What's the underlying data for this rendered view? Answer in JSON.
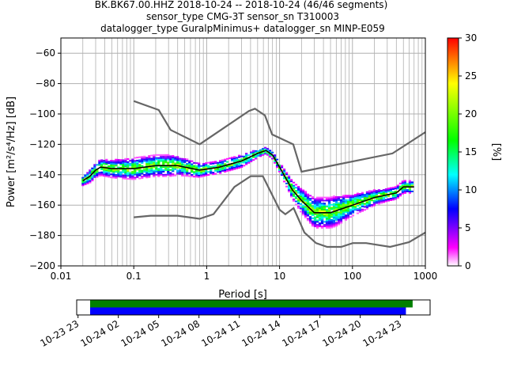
{
  "chart_data": {
    "type": "heatmap",
    "title_lines": [
      "BK.BK67.00.HHZ   2018-10-24 -- 2018-10-24  (46/46 segments)",
      "sensor_type CMG-3T sensor_sn T310003",
      "datalogger_type GuralpMinimus+ datalogger_sn MINP-E059"
    ],
    "xlabel": "Period [s]",
    "ylabel": "Power [m²/s⁴/Hz] [dB]",
    "xscale": "log",
    "xlim": [
      0.01,
      1000
    ],
    "ylim": [
      -200,
      -50
    ],
    "x_ticks": [
      "0.01",
      "0.1",
      "1",
      "10",
      "100",
      "1000"
    ],
    "y_ticks": [
      "−60",
      "−80",
      "−100",
      "−120",
      "−140",
      "−160",
      "−180",
      "−200"
    ],
    "grid": true,
    "colorbar": {
      "label": "[%]",
      "range": [
        0,
        30
      ],
      "ticks": [
        "0",
        "5",
        "10",
        "15",
        "20",
        "25",
        "30"
      ]
    },
    "colors": {
      "noise_model": "#666666",
      "mode": "#000000",
      "coverage_data": "#008000",
      "coverage_used": "#0000ff"
    },
    "noise_model_high": [
      [
        0.1,
        -91.5
      ],
      [
        0.22,
        -97.4
      ],
      [
        0.32,
        -110.5
      ],
      [
        0.8,
        -120
      ],
      [
        3.8,
        -98
      ],
      [
        4.6,
        -96.5
      ],
      [
        6.3,
        -101
      ],
      [
        7.9,
        -113.5
      ],
      [
        15.4,
        -120
      ],
      [
        20,
        -138
      ],
      [
        354,
        -126
      ],
      [
        1000,
        -112
      ]
    ],
    "noise_model_low": [
      [
        0.1,
        -168
      ],
      [
        0.17,
        -167
      ],
      [
        0.4,
        -167
      ],
      [
        0.8,
        -169
      ],
      [
        1.24,
        -166
      ],
      [
        2.4,
        -148
      ],
      [
        4,
        -141
      ],
      [
        5.9,
        -141
      ],
      [
        10,
        -163
      ],
      [
        12,
        -166
      ],
      [
        15.6,
        -162
      ],
      [
        21.9,
        -178
      ],
      [
        31.6,
        -185
      ],
      [
        45,
        -187.5
      ],
      [
        70,
        -187.5
      ],
      [
        101,
        -185
      ],
      [
        154,
        -185
      ],
      [
        328,
        -187.5
      ],
      [
        600,
        -184.4
      ],
      [
        1000,
        -178
      ]
    ],
    "mode_curve": [
      [
        0.02,
        -144
      ],
      [
        0.025,
        -141
      ],
      [
        0.03,
        -137
      ],
      [
        0.035,
        -135
      ],
      [
        0.05,
        -136
      ],
      [
        0.1,
        -136
      ],
      [
        0.2,
        -134
      ],
      [
        0.4,
        -134
      ],
      [
        0.8,
        -137
      ],
      [
        1.5,
        -135
      ],
      [
        3,
        -131
      ],
      [
        5,
        -126
      ],
      [
        6.5,
        -124
      ],
      [
        8,
        -127
      ],
      [
        10,
        -135
      ],
      [
        15,
        -150
      ],
      [
        20,
        -157
      ],
      [
        30,
        -165
      ],
      [
        50,
        -165
      ],
      [
        100,
        -160
      ],
      [
        200,
        -155
      ],
      [
        400,
        -152
      ],
      [
        500,
        -148
      ],
      [
        700,
        -148
      ]
    ],
    "spread_db": [
      [
        0.02,
        3
      ],
      [
        0.03,
        5
      ],
      [
        0.1,
        7
      ],
      [
        0.3,
        7
      ],
      [
        1,
        4
      ],
      [
        3,
        4
      ],
      [
        6.5,
        2
      ],
      [
        10,
        3
      ],
      [
        20,
        8
      ],
      [
        30,
        10
      ],
      [
        60,
        10
      ],
      [
        100,
        7
      ],
      [
        300,
        4
      ],
      [
        700,
        4
      ]
    ],
    "timeline": {
      "tick_labels": [
        "10-23 23",
        "10-24 02",
        "10-24 05",
        "10-24 08",
        "10-24 11",
        "10-24 14",
        "10-24 17",
        "10-24 20",
        "10-24 23"
      ],
      "range_hours": [
        -0.1,
        26.2
      ],
      "data_available_hours": [
        0.9,
        24.9
      ],
      "data_used_hours": [
        0.9,
        24.4
      ]
    }
  }
}
